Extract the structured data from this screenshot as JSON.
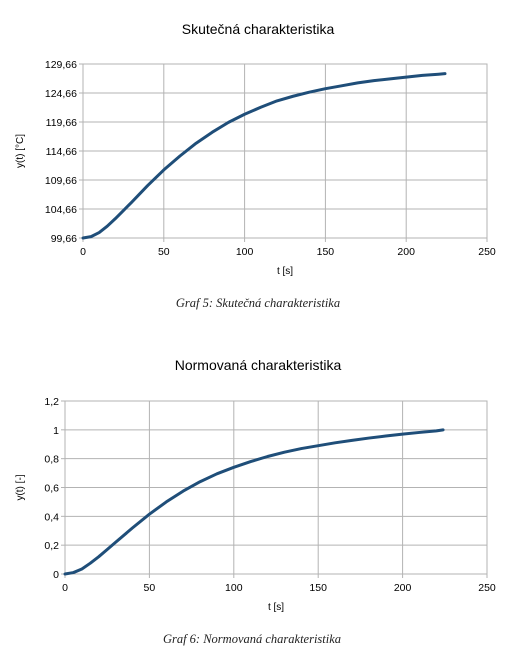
{
  "chart_data": [
    {
      "type": "line",
      "title": "Skutečná charakteristika",
      "xlabel": "t [s]",
      "ylabel": "y(t) [°C]",
      "xlim": [
        0,
        250
      ],
      "ylim": [
        99.66,
        129.66
      ],
      "xticks": [
        "0",
        "50",
        "100",
        "150",
        "200",
        "250"
      ],
      "yticks": [
        "99,66",
        "104,66",
        "109,66",
        "114,66",
        "119,66",
        "124,66",
        "129,66"
      ],
      "grid": true,
      "line_color": "#1f4e79",
      "x": [
        0,
        5,
        10,
        15,
        20,
        25,
        30,
        40,
        50,
        60,
        70,
        80,
        90,
        100,
        110,
        120,
        130,
        140,
        150,
        160,
        170,
        180,
        190,
        200,
        210,
        220,
        224
      ],
      "y": [
        99.66,
        99.9,
        100.6,
        101.7,
        103.0,
        104.4,
        105.8,
        108.7,
        111.4,
        113.8,
        116.0,
        117.9,
        119.6,
        121.0,
        122.2,
        123.3,
        124.1,
        124.8,
        125.4,
        125.9,
        126.4,
        126.8,
        127.1,
        127.4,
        127.7,
        127.9,
        128.0
      ]
    },
    {
      "type": "line",
      "title": "Normovaná charakteristika",
      "xlabel": "t [s]",
      "ylabel": "y(t) [-]",
      "xlim": [
        0,
        250
      ],
      "ylim": [
        0,
        1.2
      ],
      "xticks": [
        "0",
        "50",
        "100",
        "150",
        "200",
        "250"
      ],
      "yticks": [
        "0",
        "0,2",
        "0,4",
        "0,6",
        "0,8",
        "1",
        "1,2"
      ],
      "grid": true,
      "line_color": "#1f4e79",
      "x": [
        0,
        5,
        10,
        15,
        20,
        25,
        30,
        40,
        50,
        60,
        70,
        80,
        90,
        100,
        110,
        120,
        130,
        140,
        150,
        160,
        170,
        180,
        190,
        200,
        210,
        220,
        224
      ],
      "y": [
        0,
        0.01,
        0.035,
        0.075,
        0.12,
        0.17,
        0.22,
        0.32,
        0.415,
        0.5,
        0.575,
        0.64,
        0.695,
        0.74,
        0.78,
        0.815,
        0.845,
        0.87,
        0.89,
        0.91,
        0.927,
        0.943,
        0.957,
        0.97,
        0.982,
        0.993,
        1.0
      ]
    }
  ],
  "captions": {
    "graph5": "Graf 5: Skutečná charakteristika",
    "graph6": "Graf 6: Normovaná charakteristika"
  }
}
